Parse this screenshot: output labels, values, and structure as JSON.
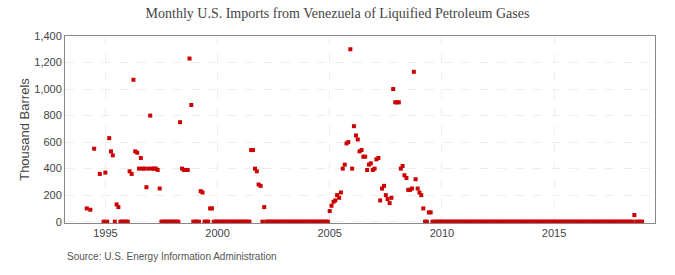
{
  "chart_data": {
    "type": "scatter",
    "title": "Monthly U.S. Imports from Venezuela of Liquified Petroleum Gases",
    "ylabel": "Thousand Barrels",
    "annotations": [
      "Source: U.S. Energy Information Administration"
    ],
    "color": "#cc0000",
    "marker": "square",
    "grid": true,
    "xlim": [
      1993.2,
      2019.5
    ],
    "ylim": [
      -10,
      1400
    ],
    "xticks": [
      1995,
      2000,
      2005,
      2010,
      2015
    ],
    "yticks": [
      0,
      200,
      400,
      600,
      800,
      {
        "value": 1000,
        "label": "1,000"
      },
      {
        "value": 1200,
        "label": "1,200"
      },
      {
        "value": 1400,
        "label": "1,400"
      }
    ],
    "x": [
      1994.17,
      1994.33,
      1994.5,
      1994.75,
      1994.92,
      1995.0,
      1995.08,
      1995.17,
      1995.25,
      1995.33,
      1995.42,
      1995.5,
      1995.58,
      1995.67,
      1995.75,
      1995.83,
      1995.92,
      1996.0,
      1996.08,
      1996.17,
      1996.25,
      1996.33,
      1996.42,
      1996.5,
      1996.58,
      1996.67,
      1996.75,
      1996.83,
      1996.92,
      1997.0,
      1997.08,
      1997.17,
      1997.25,
      1997.33,
      1997.42,
      1997.5,
      1997.58,
      1997.67,
      1997.75,
      1997.83,
      1997.92,
      1998.0,
      1998.08,
      1998.17,
      1998.25,
      1998.33,
      1998.42,
      1998.5,
      1998.58,
      1998.67,
      1998.75,
      1998.83,
      1998.92,
      1999.0,
      1999.08,
      1999.17,
      1999.25,
      1999.33,
      1999.42,
      1999.5,
      1999.58,
      1999.67,
      1999.75,
      1999.83,
      1999.92,
      2000.0,
      2000.08,
      2000.17,
      2000.25,
      2000.33,
      2000.42,
      2000.5,
      2000.58,
      2000.67,
      2000.75,
      2000.83,
      2000.92,
      2001.0,
      2001.08,
      2001.17,
      2001.25,
      2001.33,
      2001.42,
      2001.5,
      2001.58,
      2001.67,
      2001.75,
      2001.83,
      2001.92,
      2002.0,
      2002.08,
      2002.17,
      2002.25,
      2002.33,
      2002.42,
      2002.5,
      2002.58,
      2002.67,
      2002.75,
      2002.83,
      2002.92,
      2003.0,
      2003.08,
      2003.17,
      2003.25,
      2003.33,
      2003.42,
      2003.5,
      2003.58,
      2003.67,
      2003.75,
      2003.83,
      2003.92,
      2004.0,
      2004.08,
      2004.17,
      2004.25,
      2004.33,
      2004.42,
      2004.5,
      2004.58,
      2004.67,
      2004.75,
      2004.83,
      2004.92,
      2005.0,
      2005.08,
      2005.17,
      2005.25,
      2005.33,
      2005.42,
      2005.5,
      2005.58,
      2005.67,
      2005.75,
      2005.83,
      2005.92,
      2006.0,
      2006.08,
      2006.17,
      2006.25,
      2006.33,
      2006.42,
      2006.5,
      2006.58,
      2006.67,
      2006.75,
      2006.83,
      2006.92,
      2007.0,
      2007.08,
      2007.17,
      2007.25,
      2007.33,
      2007.42,
      2007.5,
      2007.58,
      2007.67,
      2007.75,
      2007.83,
      2007.92,
      2008.0,
      2008.08,
      2008.17,
      2008.25,
      2008.33,
      2008.42,
      2008.5,
      2008.58,
      2008.67,
      2008.75,
      2008.83,
      2008.92,
      2009.0,
      2009.08,
      2009.17,
      2009.25,
      2009.33,
      2009.42,
      2009.5,
      2009.58,
      2009.67,
      2009.75,
      2009.83,
      2009.92,
      2010.0,
      2010.08,
      2010.17,
      2010.25,
      2010.33,
      2010.42,
      2010.5,
      2010.58,
      2010.67,
      2010.75,
      2010.83,
      2010.92,
      2011.0,
      2011.08,
      2011.17,
      2011.25,
      2011.33,
      2011.42,
      2011.5,
      2011.58,
      2011.67,
      2011.75,
      2011.83,
      2011.92,
      2012.0,
      2012.08,
      2012.17,
      2012.25,
      2012.33,
      2012.42,
      2012.5,
      2012.58,
      2012.67,
      2012.75,
      2012.83,
      2012.92,
      2013.0,
      2013.08,
      2013.17,
      2013.25,
      2013.33,
      2013.42,
      2013.5,
      2013.58,
      2013.67,
      2013.75,
      2013.83,
      2013.92,
      2014.0,
      2014.08,
      2014.17,
      2014.25,
      2014.33,
      2014.42,
      2014.5,
      2014.58,
      2014.67,
      2014.75,
      2014.83,
      2014.92,
      2015.0,
      2015.08,
      2015.17,
      2015.25,
      2015.33,
      2015.42,
      2015.5,
      2015.58,
      2015.67,
      2015.75,
      2015.83,
      2015.92,
      2016.0,
      2016.08,
      2016.17,
      2016.25,
      2016.33,
      2016.42,
      2016.5,
      2016.58,
      2016.67,
      2016.75,
      2016.83,
      2016.92,
      2017.0,
      2017.08,
      2017.17,
      2017.25,
      2017.33,
      2017.42,
      2017.5,
      2017.58,
      2017.67,
      2017.75,
      2017.83,
      2017.92,
      2018.0,
      2018.08,
      2018.17,
      2018.25,
      2018.33,
      2018.42,
      2018.5,
      2018.58,
      2018.67,
      2018.75,
      2018.83,
      2018.92
    ],
    "values": [
      100,
      90,
      550,
      360,
      0,
      370,
      0,
      630,
      530,
      500,
      0,
      130,
      110,
      0,
      0,
      0,
      0,
      0,
      380,
      360,
      1070,
      530,
      520,
      400,
      480,
      400,
      400,
      260,
      400,
      800,
      400,
      400,
      400,
      390,
      250,
      0,
      0,
      0,
      0,
      0,
      0,
      0,
      0,
      0,
      0,
      750,
      400,
      390,
      390,
      390,
      1230,
      880,
      0,
      0,
      0,
      0,
      230,
      220,
      0,
      0,
      0,
      100,
      100,
      0,
      0,
      0,
      0,
      0,
      0,
      0,
      0,
      0,
      0,
      0,
      0,
      0,
      0,
      0,
      0,
      0,
      0,
      0,
      0,
      540,
      540,
      400,
      380,
      280,
      270,
      0,
      110,
      0,
      0,
      0,
      0,
      0,
      0,
      0,
      0,
      0,
      0,
      0,
      0,
      0,
      0,
      0,
      0,
      0,
      0,
      0,
      0,
      0,
      0,
      0,
      0,
      0,
      0,
      0,
      0,
      0,
      0,
      0,
      0,
      0,
      0,
      80,
      120,
      150,
      160,
      200,
      180,
      220,
      400,
      430,
      590,
      600,
      1300,
      400,
      720,
      650,
      620,
      530,
      540,
      490,
      490,
      390,
      430,
      440,
      390,
      400,
      470,
      480,
      160,
      250,
      270,
      200,
      170,
      140,
      180,
      1000,
      900,
      900,
      900,
      400,
      420,
      350,
      330,
      240,
      240,
      250,
      1130,
      320,
      250,
      220,
      200,
      100,
      0,
      0,
      70,
      70,
      0,
      0,
      0,
      0,
      0,
      0,
      0,
      0,
      0,
      0,
      0,
      0,
      0,
      0,
      0,
      0,
      0,
      0,
      0,
      0,
      0,
      0,
      0,
      0,
      0,
      0,
      0,
      0,
      0,
      0,
      0,
      0,
      0,
      0,
      0,
      0,
      0,
      0,
      0,
      0,
      0,
      0,
      0,
      0,
      0,
      0,
      0,
      0,
      0,
      0,
      0,
      0,
      0,
      0,
      0,
      0,
      0,
      0,
      0,
      0,
      0,
      0,
      0,
      0,
      0,
      0,
      0,
      0,
      0,
      0,
      0,
      0,
      0,
      0,
      0,
      0,
      0,
      0,
      0,
      0,
      0,
      0,
      0,
      0,
      0,
      0,
      0,
      0,
      0,
      0,
      0,
      0,
      0,
      0,
      0,
      0,
      0,
      0,
      0,
      0,
      0,
      0,
      0,
      0,
      0,
      0,
      0,
      0,
      50,
      0,
      0,
      0,
      0
    ]
  }
}
